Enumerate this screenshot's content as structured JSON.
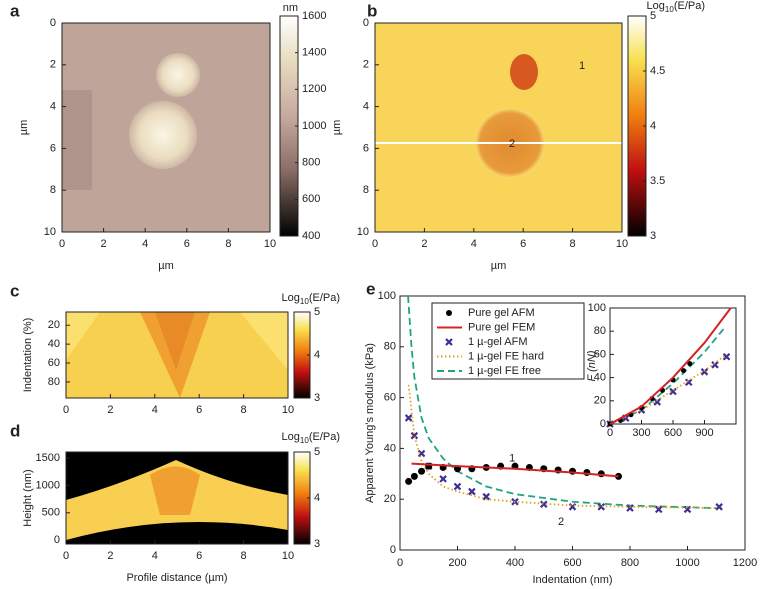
{
  "chart_data": [
    {
      "type": "heatmap",
      "label": "a",
      "xlabel": "µm",
      "ylabel": "µm",
      "xlim": [
        0,
        10
      ],
      "xticks": [
        0,
        2,
        4,
        6,
        8,
        10
      ],
      "ylim": [
        0,
        10
      ],
      "y_inverted": true,
      "yticks": [
        0,
        2,
        4,
        6,
        8,
        10
      ],
      "colorbar": {
        "title": {
          "base": "nm"
        },
        "lim": [
          400,
          1600
        ],
        "ticks": [
          400,
          600,
          800,
          1000,
          1200,
          1400,
          1600
        ],
        "colormap": "pink"
      }
    },
    {
      "type": "heatmap",
      "label": "b",
      "xlabel": "µm",
      "ylabel": "µm",
      "xlim": [
        0,
        10
      ],
      "xticks": [
        0,
        2,
        4,
        6,
        8,
        10
      ],
      "ylim": [
        0,
        10
      ],
      "y_inverted": true,
      "yticks": [
        0,
        2,
        4,
        6,
        8,
        10
      ],
      "annotations": [
        "1",
        "2"
      ],
      "colorbar": {
        "title": {
          "base": "Log",
          "sub": "10",
          "rest": "(E/Pa)"
        },
        "lim": [
          3,
          5
        ],
        "ticks": [
          3,
          3.5,
          4,
          4.5,
          5
        ],
        "colormap": "hot"
      }
    },
    {
      "type": "heatmap",
      "label": "c",
      "ylabel": "Indentation (%)",
      "xlim": [
        0,
        10
      ],
      "xticks": [
        0,
        2,
        4,
        6,
        8,
        10
      ],
      "ylim": [
        6,
        97
      ],
      "y_inverted": true,
      "yticks": [
        20,
        40,
        60,
        80
      ],
      "colorbar": {
        "title": {
          "base": "Log",
          "sub": "10",
          "rest": "(E/Pa)"
        },
        "lim": [
          3,
          5
        ],
        "ticks": [
          3,
          4,
          5
        ],
        "colormap": "hot"
      }
    },
    {
      "type": "heatmap",
      "label": "d",
      "xlabel": "Profile distance (µm)",
      "ylabel": "Height (nm)",
      "xlim": [
        0,
        10
      ],
      "xticks": [
        0,
        2,
        4,
        6,
        8,
        10
      ],
      "ylim": [
        -70,
        1610
      ],
      "y_inverted": false,
      "yticks": [
        0,
        500,
        1000,
        1500
      ],
      "colorbar": {
        "title": {
          "base": "Log",
          "sub": "10",
          "rest": "(E/Pa)"
        },
        "lim": [
          3,
          5
        ],
        "ticks": [
          3,
          4,
          5
        ],
        "colormap": "hot"
      }
    },
    {
      "type": "line",
      "label": "e",
      "xlabel": "Indentation (nm)",
      "ylabel": "Apparent Young's modulus (kPa)",
      "xlim": [
        0,
        1200
      ],
      "xticks": [
        0,
        200,
        400,
        600,
        800,
        1000,
        1200
      ],
      "ylim": [
        0,
        100
      ],
      "yticks": [
        0,
        20,
        40,
        60,
        80,
        100
      ],
      "legend": "upper left",
      "annotations": [
        "1",
        "2"
      ],
      "series": [
        {
          "name": "1 µ-gel  FE free",
          "color": "#1fa383",
          "style": "dashed",
          "x": [
            28,
            40,
            50,
            75,
            100,
            150,
            200,
            300,
            400,
            600,
            800,
            1100
          ],
          "values": [
            100,
            80,
            68,
            52,
            44,
            36,
            31,
            25,
            22,
            19,
            17.5,
            16.5
          ]
        },
        {
          "name": "1 µ-gel AFM",
          "color": "#3d2f96",
          "style": "cross",
          "x": [
            30,
            50,
            75,
            100,
            150,
            200,
            250,
            300,
            400,
            500,
            600,
            700,
            800,
            900,
            1000,
            1110
          ],
          "values": [
            52,
            45,
            38,
            33,
            28,
            25,
            23,
            21,
            19,
            18,
            17,
            17,
            16.5,
            16,
            16,
            17
          ]
        },
        {
          "name": "1 µ-gel  FE hard",
          "color": "#e0a020",
          "style": "dotted",
          "x": [
            30,
            50,
            75,
            100,
            150,
            200,
            300,
            400,
            600,
            800,
            1100
          ],
          "values": [
            65,
            45,
            35,
            30,
            25,
            23,
            20,
            19,
            17.5,
            17,
            16.5
          ]
        },
        {
          "name": "Pure gel  AFM",
          "color": "#000000",
          "style": "dots",
          "x": [
            30,
            50,
            75,
            100,
            150,
            200,
            250,
            300,
            350,
            400,
            450,
            500,
            550,
            600,
            650,
            700,
            760
          ],
          "values": [
            27,
            29,
            31,
            33,
            32.5,
            32,
            32,
            32.5,
            33,
            33,
            32.5,
            32,
            31.5,
            31,
            30.5,
            30,
            29
          ]
        },
        {
          "name": "Pure gel  FEM",
          "color": "#d42323",
          "style": "line",
          "x": [
            40,
            200,
            400,
            600,
            760
          ],
          "values": [
            34,
            33,
            32,
            30.5,
            29
          ]
        }
      ],
      "inset": {
        "ylabel": "F (nN)",
        "xlim": [
          0,
          1200
        ],
        "xticks": [
          0,
          300,
          600,
          900
        ],
        "ylim": [
          0,
          100
        ],
        "yticks": [
          0,
          20,
          40,
          60,
          80,
          100
        ],
        "series": [
          {
            "color": "#1fa383",
            "style": "dashed",
            "x": [
              0,
              300,
              600,
              900,
              1100
            ],
            "values": [
              0,
              12,
              35,
              62,
              84
            ]
          },
          {
            "color": "#3d2f96",
            "style": "cross",
            "x": [
              0,
              150,
              300,
              450,
              600,
              750,
              900,
              1000,
              1110
            ],
            "values": [
              0,
              5,
              12,
              19,
              28,
              36,
              45,
              51,
              58
            ]
          },
          {
            "color": "#e0a020",
            "style": "dotted",
            "x": [
              0,
              300,
              600,
              900,
              1110
            ],
            "values": [
              0,
              12,
              29,
              46,
              60
            ]
          },
          {
            "color": "#000000",
            "style": "dots",
            "x": [
              0,
              100,
              200,
              300,
              400,
              500,
              600,
              700,
              760
            ],
            "values": [
              0,
              3,
              8,
              14,
              22,
              29,
              38,
              46,
              52
            ]
          },
          {
            "color": "#d42323",
            "style": "line",
            "x": [
              0,
              300,
              600,
              900,
              1150
            ],
            "values": [
              0,
              15,
              40,
              70,
              100
            ]
          }
        ]
      }
    }
  ]
}
